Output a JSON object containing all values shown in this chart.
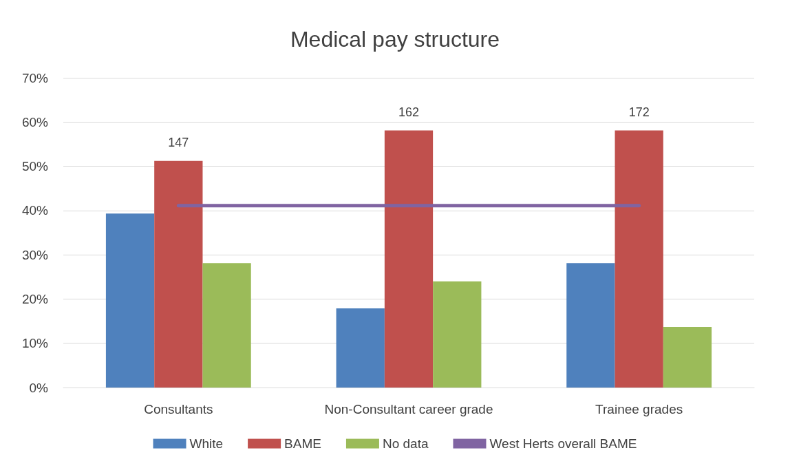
{
  "chart_data": {
    "type": "bar",
    "title": "Medical pay structure",
    "categories": [
      "Consultants",
      "Non-Consultant career grade",
      "Trainee grades"
    ],
    "series": [
      {
        "name": "White",
        "color": "#4f81bd",
        "values": [
          39.3,
          17.9,
          28.1
        ]
      },
      {
        "name": "BAME",
        "color": "#c0504d",
        "values": [
          51.2,
          58.1,
          58.1
        ]
      },
      {
        "name": "No data",
        "color": "#9bbb59",
        "values": [
          28.1,
          24.0,
          13.7
        ]
      },
      {
        "name": "West Herts overall BAME",
        "type": "line",
        "color": "#8064a2",
        "values": [
          41.1,
          41.1,
          41.1
        ],
        "line_style": "solid",
        "marker": "none"
      }
    ],
    "ylim": [
      0,
      70
    ],
    "yticks": [
      {
        "value": 0,
        "label": "0%"
      },
      {
        "value": 10,
        "label": "10%"
      },
      {
        "value": 20,
        "label": "20%"
      },
      {
        "value": 30,
        "label": "30%"
      },
      {
        "value": 40,
        "label": "40%"
      },
      {
        "value": 50,
        "label": "50%"
      },
      {
        "value": 60,
        "label": "60%"
      },
      {
        "value": 70,
        "label": "70%"
      }
    ],
    "grid": "y",
    "legend": "bottom",
    "annotations": [
      {
        "text": "147",
        "x": "Consultants",
        "y": 51.2
      },
      {
        "text": "162",
        "x": "Non-Consultant career grade",
        "y": 58.1
      },
      {
        "text": "172",
        "x": "Trainee grades",
        "y": 58.1
      }
    ]
  }
}
